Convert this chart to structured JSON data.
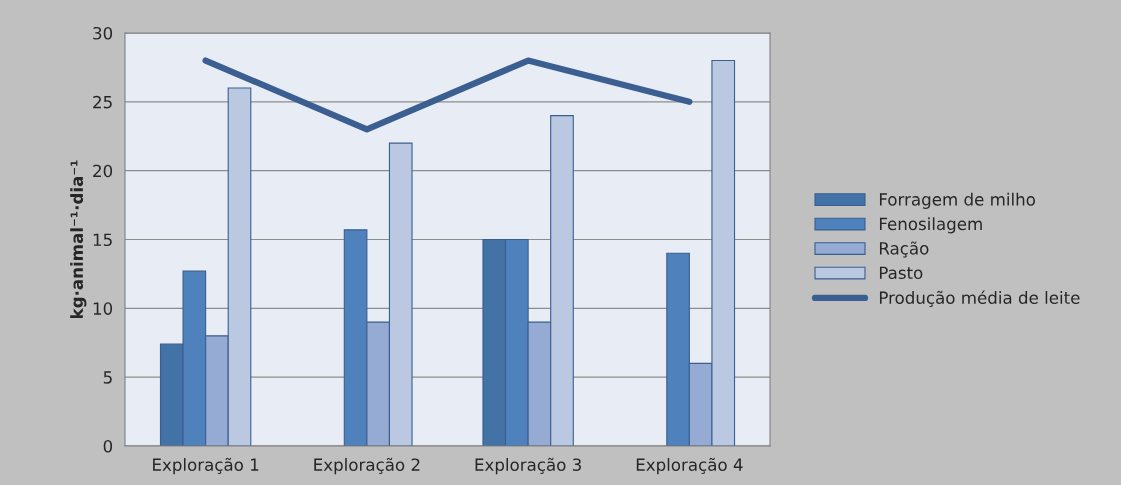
{
  "chart_data": {
    "type": "bar",
    "ylabel": "kg·animal⁻¹·dia⁻¹",
    "categories": [
      "Exploração 1",
      "Exploração 2",
      "Exploração 3",
      "Exploração 4"
    ],
    "series": [
      {
        "name": "Forragem de milho",
        "color": "#4372a7",
        "values": [
          7.4,
          null,
          15,
          null
        ]
      },
      {
        "name": "Fenosilagem",
        "color": "#4f81bd",
        "values": [
          12.7,
          15.7,
          15,
          14
        ]
      },
      {
        "name": "Ração",
        "color": "#95abd3",
        "values": [
          8,
          9,
          9,
          6
        ]
      },
      {
        "name": "Pasto",
        "color": "#bbc8e1",
        "values": [
          26,
          22,
          24,
          28
        ]
      },
      {
        "name": "Produção média de leite",
        "color": "#3c5f91",
        "type": "line",
        "values": [
          28,
          23,
          28,
          25
        ]
      }
    ],
    "ylim": [
      0,
      30
    ],
    "yticks": [
      0,
      5,
      10,
      15,
      20,
      25,
      30
    ],
    "grid": "y",
    "legend": "right"
  }
}
